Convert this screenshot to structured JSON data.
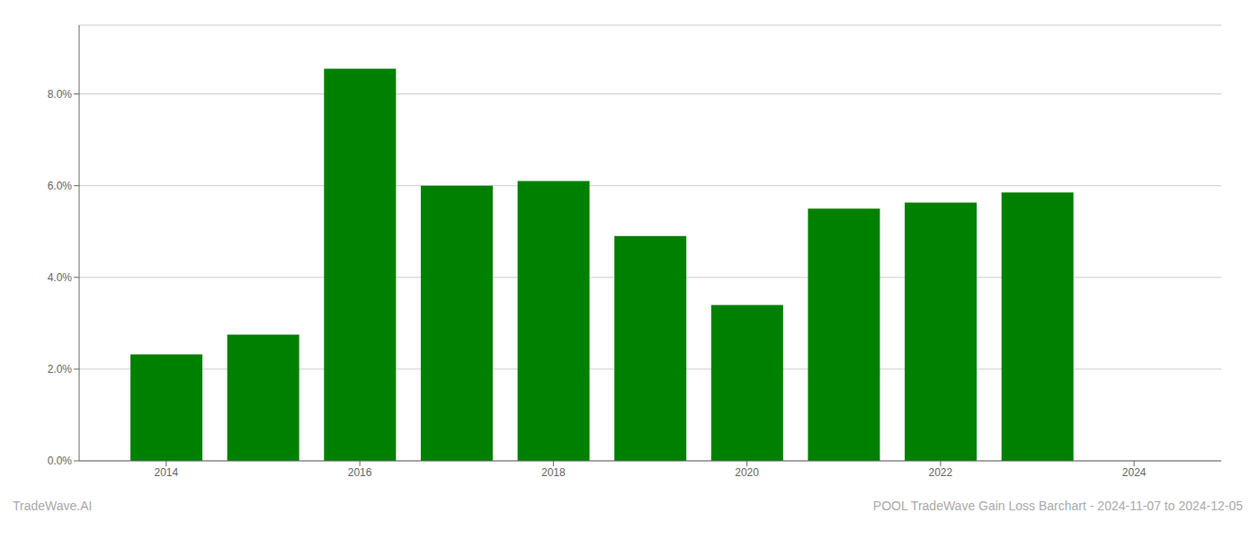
{
  "chart_data": {
    "type": "bar",
    "x": [
      2014,
      2015,
      2016,
      2017,
      2018,
      2019,
      2020,
      2021,
      2022,
      2023
    ],
    "values": [
      0.0232,
      0.0275,
      0.0855,
      0.06,
      0.061,
      0.049,
      0.034,
      0.055,
      0.0563,
      0.0585
    ],
    "color": "#008000",
    "xlim": [
      2013.1,
      2024.9
    ],
    "xticks": [
      2014,
      2016,
      2018,
      2020,
      2022,
      2024
    ],
    "ylim": [
      0,
      0.095
    ],
    "yticks": [
      {
        "value": 0.0,
        "label": "0.0%"
      },
      {
        "value": 0.02,
        "label": "2.0%"
      },
      {
        "value": 0.04,
        "label": "4.0%"
      },
      {
        "value": 0.06,
        "label": "6.0%"
      },
      {
        "value": 0.08,
        "label": "8.0%"
      }
    ],
    "grid": true,
    "annotations": [
      "TradeWave.AI",
      "POOL TradeWave Gain Loss Barchart - 2024-11-07 to 2024-12-05"
    ]
  }
}
